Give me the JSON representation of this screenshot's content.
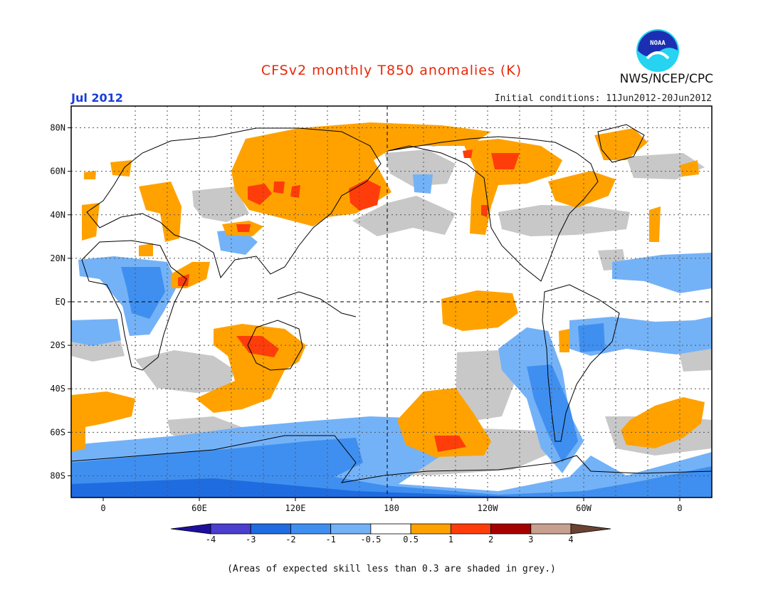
{
  "title": "CFSv2 monthly T850 anomalies (K)",
  "month": "Jul 2012",
  "initial_conditions": "Initial conditions: 11Jun2012-20Jun2012",
  "agency": "NWS/NCEP/CPC",
  "logo_text": "NOAA",
  "caption": "(Areas of expected skill less than 0.3 are shaded in grey.)",
  "lat_labels": [
    "80N",
    "60N",
    "40N",
    "20N",
    "EQ",
    "20S",
    "40S",
    "60S",
    "80S"
  ],
  "lon_labels": [
    "0",
    "60E",
    "120E",
    "180",
    "120W",
    "60W",
    "0"
  ],
  "colorbar": {
    "tick_labels": [
      "-4",
      "-3",
      "-2",
      "-1",
      "-0.5",
      "0.5",
      "1",
      "2",
      "3",
      "4"
    ],
    "colors": [
      "#1d0f9e",
      "#4a3fcf",
      "#1f6ce0",
      "#3f8ff0",
      "#74b2f7",
      "#ffffff",
      "#ffa200",
      "#ff3d0a",
      "#a50000",
      "#c8a090",
      "#6b4232"
    ]
  },
  "skill_mask_color": "#c8c8c8",
  "chart_data": {
    "type": "heatmap",
    "title": "CFSv2 monthly T850 anomalies (K)",
    "units": "K",
    "valid_month": "Jul 2012",
    "x_range": [
      -20,
      380
    ],
    "y_range": [
      -90,
      90
    ],
    "anomaly_regions": [
      {
        "name": "North Pacific warm anomaly",
        "lon": 165,
        "lat": 45,
        "value": 2
      },
      {
        "name": "Central Asia warm anomaly",
        "lon": 90,
        "lat": 48,
        "value": 2
      },
      {
        "name": "Arctic / Siberia warm band",
        "lon": 120,
        "lat": 65,
        "value": 1
      },
      {
        "name": "Eastern Europe warm anomaly",
        "lon": 30,
        "lat": 45,
        "value": 1
      },
      {
        "name": "Western North America warm anomaly",
        "lon": 240,
        "lat": 42,
        "value": 2
      },
      {
        "name": "Hudson Bay / Canada warm anomaly",
        "lon": 278,
        "lat": 60,
        "value": 2
      },
      {
        "name": "Eastern North America warm anomaly",
        "lon": 290,
        "lat": 47,
        "value": 1
      },
      {
        "name": "Equatorial central Pacific warm anomaly",
        "lon": 215,
        "lat": -3,
        "value": 1
      },
      {
        "name": "Australia warm anomaly",
        "lon": 125,
        "lat": -20,
        "value": 2
      },
      {
        "name": "South Indian Ocean warm anomaly",
        "lon": 80,
        "lat": -48,
        "value": 1
      },
      {
        "name": "South Pacific warm anomaly",
        "lon": 210,
        "lat": -60,
        "value": 2
      },
      {
        "name": "South Atlantic warm anomaly",
        "lon": 340,
        "lat": -60,
        "value": 1
      },
      {
        "name": "Arabia / Horn of Africa warm anomaly",
        "lon": 48,
        "lat": 14,
        "value": 2
      },
      {
        "name": "Sahel / West Africa cold anomaly",
        "lon": 15,
        "lat": 15,
        "value": -2
      },
      {
        "name": "Tropical North Atlantic cold anomaly",
        "lon": 320,
        "lat": 18,
        "value": -1
      },
      {
        "name": "Central Africa cold anomaly",
        "lon": 22,
        "lat": 0,
        "value": -2
      },
      {
        "name": "South America cold anomaly",
        "lon": 305,
        "lat": -12,
        "value": -2
      },
      {
        "name": "Southeast Pacific cold anomaly",
        "lon": 270,
        "lat": -35,
        "value": -1
      },
      {
        "name": "Southern Ocean / Antarctica cold band",
        "lon": 100,
        "lat": -75,
        "value": -2
      },
      {
        "name": "Tibetan Plateau cold anomaly",
        "lon": 90,
        "lat": 30,
        "value": -1
      },
      {
        "name": "Drake Passage cold anomaly",
        "lon": 300,
        "lat": -62,
        "value": -1
      }
    ],
    "low_skill_regions": [
      {
        "lon": 55,
        "lat": 40
      },
      {
        "lon": 115,
        "lat": 55
      },
      {
        "lon": 215,
        "lat": 38
      },
      {
        "lon": 250,
        "lat": 58
      },
      {
        "lon": 285,
        "lat": 38
      },
      {
        "lon": 205,
        "lat": -30
      },
      {
        "lon": 95,
        "lat": -30
      },
      {
        "lon": 355,
        "lat": -20
      },
      {
        "lon": 240,
        "lat": -72
      },
      {
        "lon": 150,
        "lat": -70
      },
      {
        "lon": 250,
        "lat": 35
      }
    ]
  }
}
